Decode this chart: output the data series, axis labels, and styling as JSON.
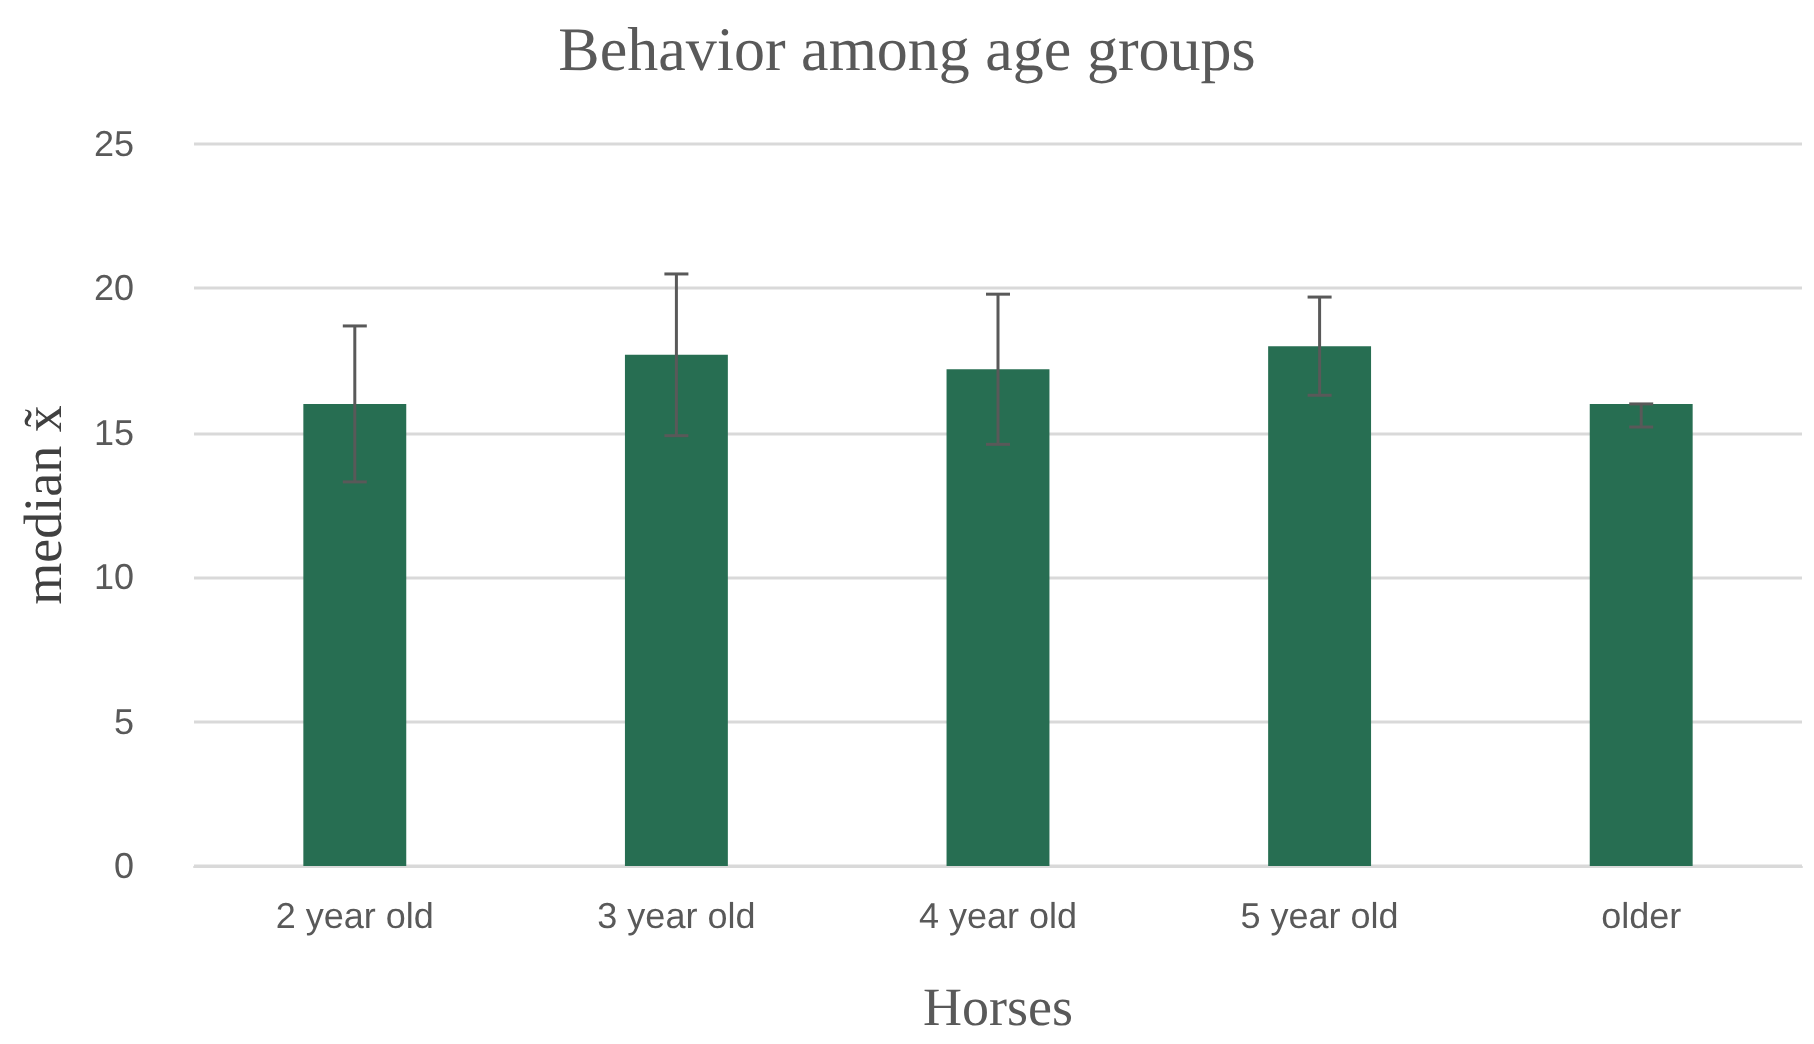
{
  "chart_data": {
    "type": "bar",
    "title": "Behavior among age groups",
    "xlabel": "Horses",
    "ylabel": "median x̃",
    "categories": [
      "2 year old",
      "3 year old",
      "4 year old",
      "5 year old",
      "older"
    ],
    "values": [
      16,
      17.7,
      17.2,
      18,
      16
    ],
    "errors": [
      2.7,
      2.8,
      2.6,
      1.7,
      [
        15.2,
        16
      ]
    ],
    "color": "#276e52",
    "ylim": [
      0,
      25
    ],
    "yticks": [
      0,
      5,
      10,
      15,
      20,
      25
    ],
    "grid": "y"
  }
}
